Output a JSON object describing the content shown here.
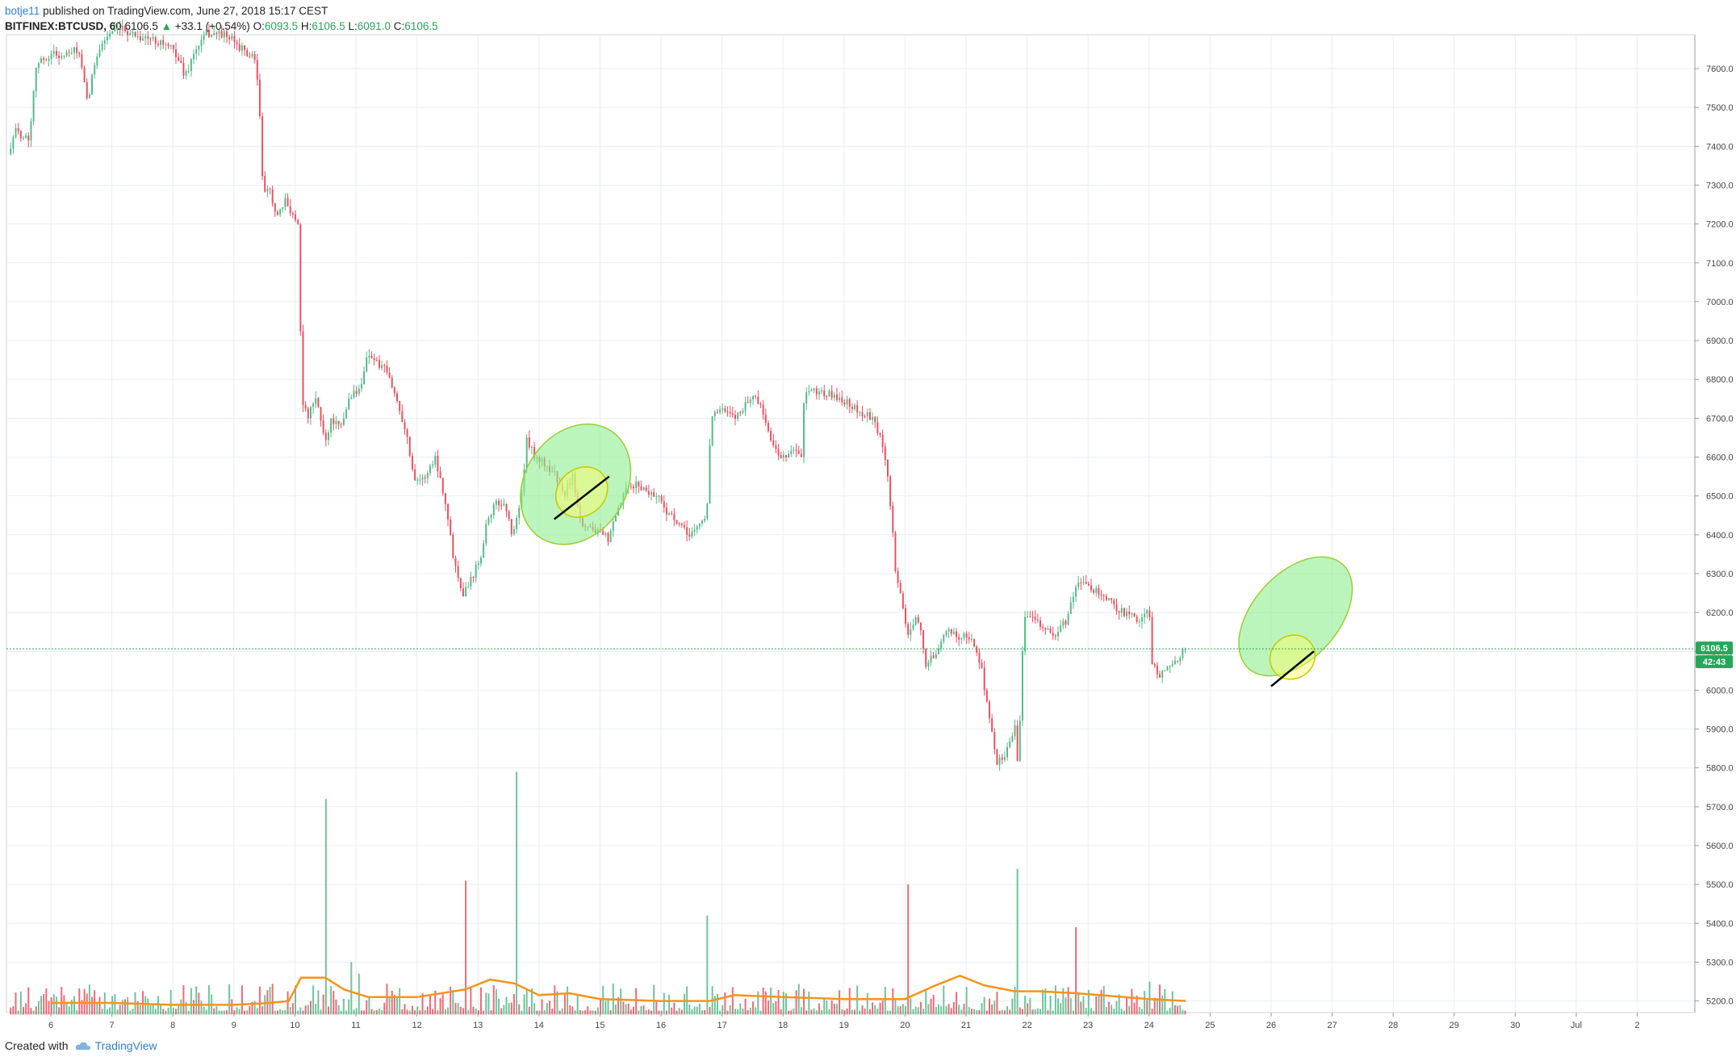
{
  "header": {
    "author": "botje11",
    "published": "published on TradingView.com, June 27, 2018 15:17 CEST",
    "symbol": "BITFINEX:BTCUSD, 60",
    "last": "6106.5",
    "change_arrow": "▲",
    "change": "+33.1 (+0.54%)",
    "o_label": "O:",
    "o": "6093.5",
    "h_label": "H:",
    "h": "6106.5",
    "l_label": "L:",
    "l": "6091.0",
    "c_label": "C:",
    "c": "6106.5"
  },
  "footer": {
    "created_with": "Created with",
    "brand": "TradingView"
  },
  "colors": {
    "up": "#53b987",
    "down": "#eb4d5c",
    "ma": "#f7931a",
    "grid": "#e8eef2",
    "price_line": "#26a65b",
    "highlight_fill": "#90ee90",
    "highlight_stroke": "#c8c800"
  },
  "chart_data": {
    "type": "candlestick",
    "symbol": "BITFINEX:BTCUSD",
    "interval_minutes": 60,
    "price_axis": {
      "min": 5130,
      "max": 7710,
      "ticks": [
        7600,
        7500,
        7400,
        7300,
        7200,
        7100,
        7000,
        6900,
        6800,
        6700,
        6600,
        6500,
        6400,
        6300,
        6200,
        6100,
        6000,
        5900,
        5800,
        5700,
        5600,
        5500,
        5400,
        5300,
        5200
      ],
      "tick_format": "fixed1"
    },
    "time_axis": {
      "labels": [
        "6",
        "7",
        "8",
        "9",
        "10",
        "11",
        "12",
        "13",
        "14",
        "15",
        "16",
        "17",
        "18",
        "19",
        "20",
        "21",
        "22",
        "23",
        "24",
        "25",
        "26",
        "27",
        "28",
        "29",
        "30",
        "Jul",
        "2"
      ],
      "day_index": [
        0,
        1,
        2,
        3,
        4,
        5,
        6,
        7,
        8,
        9,
        10,
        11,
        12,
        13,
        14,
        15,
        16,
        17,
        18,
        19,
        20,
        21,
        22,
        23,
        24,
        25,
        26
      ]
    },
    "last_price": 6106.5,
    "last_price_label": "6106.5",
    "countdown_label": "42:43",
    "price_path": [
      [
        -0.7,
        7380
      ],
      [
        -0.6,
        7440
      ],
      [
        -0.35,
        7420
      ],
      [
        -0.25,
        7610
      ],
      [
        0.05,
        7640
      ],
      [
        0.2,
        7630
      ],
      [
        0.45,
        7650
      ],
      [
        0.6,
        7510
      ],
      [
        0.75,
        7640
      ],
      [
        0.95,
        7690
      ],
      [
        1.2,
        7700
      ],
      [
        1.5,
        7680
      ],
      [
        1.8,
        7670
      ],
      [
        2.05,
        7640
      ],
      [
        2.2,
        7580
      ],
      [
        2.35,
        7640
      ],
      [
        2.55,
        7690
      ],
      [
        2.8,
        7690
      ],
      [
        3.0,
        7670
      ],
      [
        3.2,
        7640
      ],
      [
        3.35,
        7620
      ],
      [
        3.42,
        7500
      ],
      [
        3.48,
        7270
      ],
      [
        3.6,
        7290
      ],
      [
        3.7,
        7210
      ],
      [
        3.85,
        7260
      ],
      [
        3.95,
        7230
      ],
      [
        4.05,
        7200
      ],
      [
        4.12,
        6750
      ],
      [
        4.2,
        6700
      ],
      [
        4.35,
        6750
      ],
      [
        4.5,
        6640
      ],
      [
        4.6,
        6700
      ],
      [
        4.75,
        6670
      ],
      [
        4.9,
        6760
      ],
      [
        5.05,
        6770
      ],
      [
        5.2,
        6870
      ],
      [
        5.35,
        6840
      ],
      [
        5.5,
        6820
      ],
      [
        5.62,
        6770
      ],
      [
        5.8,
        6680
      ],
      [
        5.95,
        6550
      ],
      [
        6.1,
        6540
      ],
      [
        6.3,
        6600
      ],
      [
        6.45,
        6500
      ],
      [
        6.6,
        6340
      ],
      [
        6.75,
        6250
      ],
      [
        6.9,
        6290
      ],
      [
        7.05,
        6350
      ],
      [
        7.15,
        6440
      ],
      [
        7.3,
        6480
      ],
      [
        7.45,
        6480
      ],
      [
        7.55,
        6400
      ],
      [
        7.7,
        6480
      ],
      [
        7.8,
        6640
      ],
      [
        7.95,
        6600
      ],
      [
        8.1,
        6580
      ],
      [
        8.25,
        6560
      ],
      [
        8.4,
        6500
      ],
      [
        8.55,
        6550
      ],
      [
        8.7,
        6430
      ],
      [
        8.85,
        6420
      ],
      [
        9.0,
        6400
      ],
      [
        9.15,
        6390
      ],
      [
        9.25,
        6440
      ],
      [
        9.4,
        6510
      ],
      [
        9.6,
        6530
      ],
      [
        9.8,
        6510
      ],
      [
        9.95,
        6500
      ],
      [
        10.1,
        6460
      ],
      [
        10.25,
        6430
      ],
      [
        10.45,
        6400
      ],
      [
        10.6,
        6420
      ],
      [
        10.75,
        6450
      ],
      [
        10.82,
        6710
      ],
      [
        11.0,
        6720
      ],
      [
        11.2,
        6700
      ],
      [
        11.4,
        6740
      ],
      [
        11.55,
        6760
      ],
      [
        11.7,
        6700
      ],
      [
        11.85,
        6620
      ],
      [
        12.0,
        6600
      ],
      [
        12.15,
        6620
      ],
      [
        12.3,
        6600
      ],
      [
        12.35,
        6760
      ],
      [
        12.55,
        6770
      ],
      [
        12.75,
        6760
      ],
      [
        12.95,
        6750
      ],
      [
        13.15,
        6730
      ],
      [
        13.3,
        6710
      ],
      [
        13.45,
        6700
      ],
      [
        13.6,
        6650
      ],
      [
        13.72,
        6550
      ],
      [
        13.85,
        6300
      ],
      [
        14.05,
        6140
      ],
      [
        14.2,
        6200
      ],
      [
        14.35,
        6060
      ],
      [
        14.5,
        6100
      ],
      [
        14.7,
        6150
      ],
      [
        14.9,
        6140
      ],
      [
        15.1,
        6130
      ],
      [
        15.25,
        6060
      ],
      [
        15.35,
        5960
      ],
      [
        15.5,
        5810
      ],
      [
        15.65,
        5840
      ],
      [
        15.8,
        5910
      ],
      [
        15.85,
        5790
      ],
      [
        15.95,
        6190
      ],
      [
        16.1,
        6200
      ],
      [
        16.25,
        6160
      ],
      [
        16.45,
        6140
      ],
      [
        16.65,
        6180
      ],
      [
        16.8,
        6270
      ],
      [
        17.0,
        6270
      ],
      [
        17.2,
        6250
      ],
      [
        17.4,
        6220
      ],
      [
        17.6,
        6200
      ],
      [
        17.8,
        6180
      ],
      [
        18.0,
        6210
      ],
      [
        18.05,
        6060
      ],
      [
        18.2,
        6040
      ],
      [
        18.35,
        6060
      ],
      [
        18.5,
        6090
      ],
      [
        18.6,
        6106.5
      ]
    ],
    "volume_path": [
      [
        0.0,
        5195
      ],
      [
        1.0,
        5195
      ],
      [
        2.0,
        5190
      ],
      [
        3.0,
        5190
      ],
      [
        3.6,
        5195
      ],
      [
        3.9,
        5200
      ],
      [
        4.1,
        5260
      ],
      [
        4.5,
        5260
      ],
      [
        4.8,
        5230
      ],
      [
        5.2,
        5210
      ],
      [
        6.0,
        5210
      ],
      [
        6.8,
        5230
      ],
      [
        7.2,
        5255
      ],
      [
        7.6,
        5245
      ],
      [
        8.0,
        5215
      ],
      [
        8.5,
        5220
      ],
      [
        9.0,
        5205
      ],
      [
        10.0,
        5200
      ],
      [
        10.8,
        5200
      ],
      [
        11.2,
        5215
      ],
      [
        12.0,
        5210
      ],
      [
        13.0,
        5205
      ],
      [
        14.0,
        5205
      ],
      [
        14.5,
        5240
      ],
      [
        14.9,
        5265
      ],
      [
        15.3,
        5240
      ],
      [
        15.8,
        5225
      ],
      [
        16.2,
        5225
      ],
      [
        16.8,
        5220
      ],
      [
        17.2,
        5215
      ],
      [
        18.0,
        5205
      ],
      [
        18.6,
        5200
      ]
    ],
    "volume_spikes": [
      [
        4.5,
        5720
      ],
      [
        4.92,
        5300
      ],
      [
        5.05,
        5270
      ],
      [
        6.8,
        5510
      ],
      [
        7.65,
        5790
      ],
      [
        10.75,
        5420
      ],
      [
        14.05,
        5500
      ],
      [
        15.85,
        5540
      ],
      [
        16.8,
        5390
      ],
      [
        18.0,
        5250
      ]
    ],
    "annotations": [
      {
        "type": "ellipse",
        "style": "green",
        "cx": 8.6,
        "cy": 6530,
        "rx": 1.05,
        "ry": 130,
        "rot": -56
      },
      {
        "type": "ellipse",
        "style": "yellow",
        "cx": 8.7,
        "cy": 6510,
        "rx": 0.45,
        "ry": 60,
        "rot": -40
      },
      {
        "type": "line",
        "x1": 8.25,
        "y1": 6440,
        "x2": 9.15,
        "y2": 6550
      },
      {
        "type": "ellipse",
        "style": "green",
        "cx": 20.4,
        "cy": 6190,
        "rx": 1.15,
        "ry": 110,
        "rot": -48
      },
      {
        "type": "ellipse",
        "style": "yellow",
        "cx": 20.35,
        "cy": 6085,
        "rx": 0.38,
        "ry": 55,
        "rot": -38
      },
      {
        "type": "line",
        "x1": 20.0,
        "y1": 6010,
        "x2": 20.7,
        "y2": 6100
      }
    ]
  }
}
